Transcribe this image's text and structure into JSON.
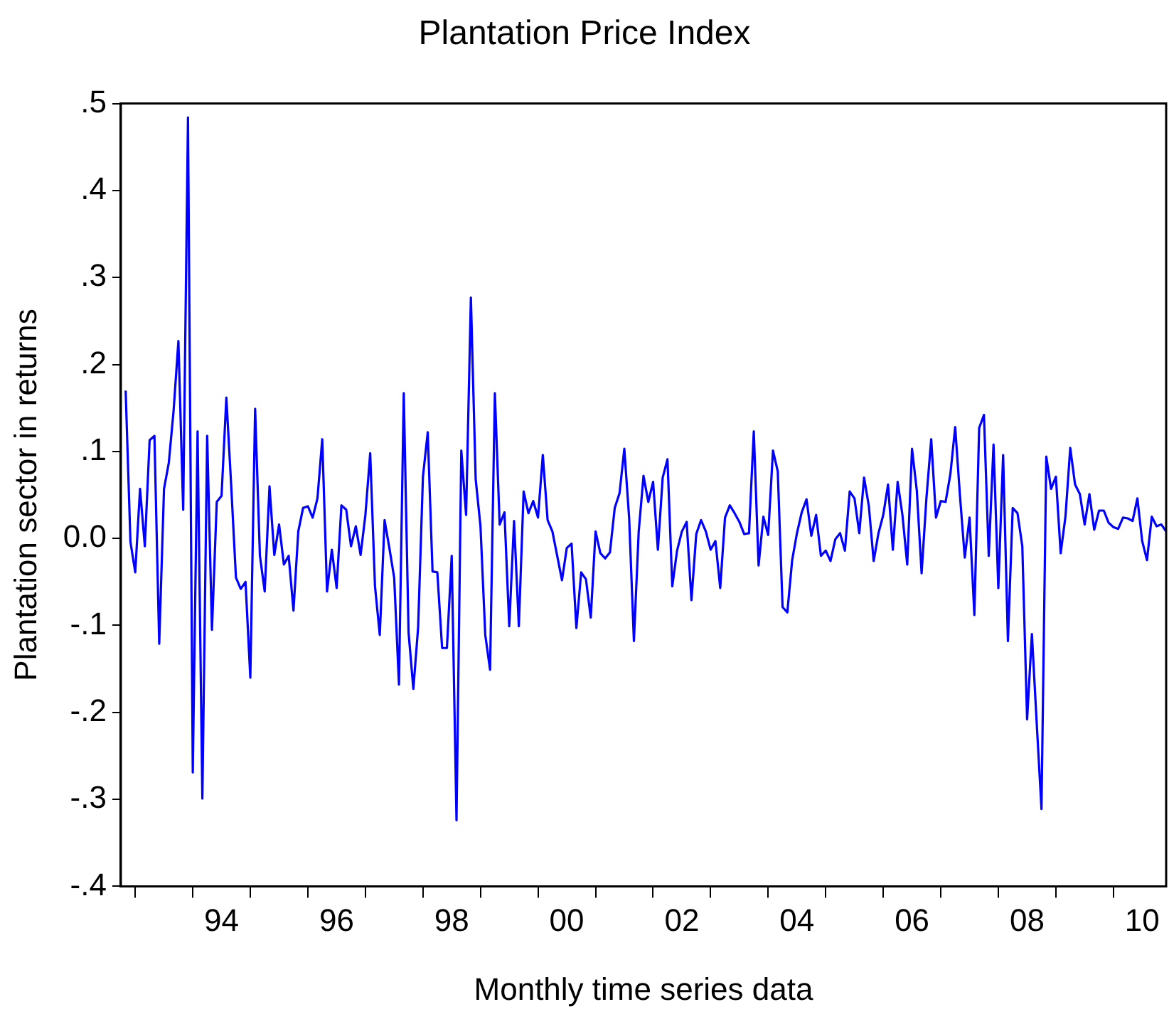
{
  "chart_data": {
    "type": "line",
    "title": "Plantation Price Index",
    "xlabel": "Monthly time series data",
    "ylabel": "Plantation sector in returns",
    "x": [
      "1992-11",
      "1992-12",
      "1993-01",
      "1993-02",
      "1993-03",
      "1993-04",
      "1993-05",
      "1993-06",
      "1993-07",
      "1993-08",
      "1993-09",
      "1993-10",
      "1993-11",
      "1993-12",
      "1994-01",
      "1994-02",
      "1994-03",
      "1994-04",
      "1994-05",
      "1994-06",
      "1994-07",
      "1994-08",
      "1994-09",
      "1994-10",
      "1994-11",
      "1994-12",
      "1995-01",
      "1995-02",
      "1995-03",
      "1995-04",
      "1995-05",
      "1995-06",
      "1995-07",
      "1995-08",
      "1995-09",
      "1995-10",
      "1995-11",
      "1995-12",
      "1996-01",
      "1996-02",
      "1996-03",
      "1996-04",
      "1996-05",
      "1996-06",
      "1996-07",
      "1996-08",
      "1996-09",
      "1996-10",
      "1996-11",
      "1996-12",
      "1997-01",
      "1997-02",
      "1997-03",
      "1997-04",
      "1997-05",
      "1997-06",
      "1997-07",
      "1997-08",
      "1997-09",
      "1997-10",
      "1997-11",
      "1997-12",
      "1998-01",
      "1998-02",
      "1998-03",
      "1998-04",
      "1998-05",
      "1998-06",
      "1998-07",
      "1998-08",
      "1998-09",
      "1998-10",
      "1998-11",
      "1998-12",
      "1999-01",
      "1999-02",
      "1999-03",
      "1999-04",
      "1999-05",
      "1999-06",
      "1999-07",
      "1999-08",
      "1999-09",
      "1999-10",
      "1999-11",
      "1999-12",
      "2000-01",
      "2000-02",
      "2000-03",
      "2000-04",
      "2000-05",
      "2000-06",
      "2000-07",
      "2000-08",
      "2000-09",
      "2000-10",
      "2000-11",
      "2000-12",
      "2001-01",
      "2001-02",
      "2001-03",
      "2001-04",
      "2001-05",
      "2001-06",
      "2001-07",
      "2001-08",
      "2001-09",
      "2001-10",
      "2001-11",
      "2001-12",
      "2002-01",
      "2002-02",
      "2002-03",
      "2002-04",
      "2002-05",
      "2002-06",
      "2002-07",
      "2002-08",
      "2002-09",
      "2002-10",
      "2002-11",
      "2002-12",
      "2003-01",
      "2003-02",
      "2003-03",
      "2003-04",
      "2003-05",
      "2003-06",
      "2003-07",
      "2003-08",
      "2003-09",
      "2003-10",
      "2003-11",
      "2003-12",
      "2004-01",
      "2004-02",
      "2004-03",
      "2004-04",
      "2004-05",
      "2004-06",
      "2004-07",
      "2004-08",
      "2004-09",
      "2004-10",
      "2004-11",
      "2004-12",
      "2005-01",
      "2005-02",
      "2005-03",
      "2005-04",
      "2005-05",
      "2005-06",
      "2005-07",
      "2005-08",
      "2005-09",
      "2005-10",
      "2005-11",
      "2005-12",
      "2006-01",
      "2006-02",
      "2006-03",
      "2006-04",
      "2006-05",
      "2006-06",
      "2006-07",
      "2006-08",
      "2006-09",
      "2006-10",
      "2006-11",
      "2006-12",
      "2007-01",
      "2007-02",
      "2007-03",
      "2007-04",
      "2007-05",
      "2007-06",
      "2007-07",
      "2007-08",
      "2007-09",
      "2007-10",
      "2007-11",
      "2007-12",
      "2008-01",
      "2008-02",
      "2008-03",
      "2008-04",
      "2008-05",
      "2008-06",
      "2008-07",
      "2008-08",
      "2008-09",
      "2008-10",
      "2008-11",
      "2008-12",
      "2009-01",
      "2009-02",
      "2009-03",
      "2009-04",
      "2009-05",
      "2009-06",
      "2009-07",
      "2009-08",
      "2009-09",
      "2009-10",
      "2009-11",
      "2009-12",
      "2010-01",
      "2010-02",
      "2010-03",
      "2010-04",
      "2010-05",
      "2010-06",
      "2010-07",
      "2010-08",
      "2010-09",
      "2010-10",
      "2010-11",
      "2010-12"
    ],
    "series": [
      {
        "color": "#0000ff",
        "values": [
          0.17,
          -0.004,
          -0.039,
          0.057,
          -0.009,
          0.113,
          0.118,
          -0.121,
          0.057,
          0.087,
          0.147,
          0.227,
          0.033,
          0.484,
          -0.269,
          0.123,
          -0.299,
          0.118,
          -0.105,
          0.042,
          0.049,
          0.162,
          0.062,
          -0.045,
          -0.058,
          -0.05,
          -0.16,
          0.149,
          -0.02,
          -0.061,
          0.06,
          -0.019,
          0.016,
          -0.03,
          -0.02,
          -0.083,
          0.008,
          0.035,
          0.037,
          0.024,
          0.046,
          0.114,
          -0.061,
          -0.013,
          -0.057,
          0.038,
          0.033,
          -0.009,
          0.014,
          -0.019,
          0.027,
          0.098,
          -0.055,
          -0.111,
          0.021,
          -0.011,
          -0.045,
          -0.168,
          0.167,
          -0.108,
          -0.173,
          -0.102,
          0.071,
          0.122,
          -0.038,
          -0.039,
          -0.126,
          -0.126,
          -0.02,
          -0.324,
          0.101,
          0.027,
          0.277,
          0.068,
          0.014,
          -0.111,
          -0.151,
          0.167,
          0.016,
          0.03,
          -0.101,
          0.02,
          -0.101,
          0.054,
          0.029,
          0.043,
          0.024,
          0.096,
          0.021,
          0.008,
          -0.02,
          -0.048,
          -0.011,
          -0.006,
          -0.103,
          -0.039,
          -0.047,
          -0.091,
          0.008,
          -0.017,
          -0.023,
          -0.016,
          0.035,
          0.052,
          0.103,
          0.024,
          -0.118,
          0.008,
          0.072,
          0.042,
          0.065,
          -0.013,
          0.07,
          0.091,
          -0.055,
          -0.014,
          0.008,
          0.019,
          -0.071,
          0.005,
          0.021,
          0.008,
          -0.013,
          -0.003,
          -0.057,
          0.024,
          0.038,
          0.029,
          0.019,
          0.005,
          0.006,
          0.123,
          -0.031,
          0.025,
          0.004,
          0.101,
          0.077,
          -0.079,
          -0.085,
          -0.025,
          0.006,
          0.03,
          0.045,
          0.003,
          0.027,
          -0.02,
          -0.014,
          -0.026,
          -0.001,
          0.006,
          -0.014,
          0.054,
          0.046,
          0.006,
          0.07,
          0.037,
          -0.026,
          0.006,
          0.027,
          0.062,
          -0.013,
          0.065,
          0.027,
          -0.03,
          0.103,
          0.055,
          -0.04,
          0.046,
          0.114,
          0.024,
          0.043,
          0.042,
          0.074,
          0.128,
          0.049,
          -0.022,
          0.024,
          -0.088,
          0.127,
          0.142,
          -0.02,
          0.108,
          -0.057,
          0.096,
          -0.118,
          0.035,
          0.029,
          -0.009,
          -0.208,
          -0.11,
          -0.212,
          -0.311,
          0.094,
          0.057,
          0.071,
          -0.017,
          0.025,
          0.104,
          0.062,
          0.051,
          0.016,
          0.051,
          0.01,
          0.032,
          0.032,
          0.018,
          0.013,
          0.011,
          0.024,
          0.023,
          0.02,
          0.046,
          -0.003,
          -0.025,
          0.025,
          0.014,
          0.016,
          0.008
        ]
      }
    ],
    "xlim": [
      "1992-10",
      "2010-12"
    ],
    "xticks": [
      {
        "value": "1993-01",
        "label": null
      },
      {
        "value": "1994-01",
        "label": null
      },
      {
        "value": "1994-07",
        "label": "94"
      },
      {
        "value": "1995-01",
        "label": null
      },
      {
        "value": "1996-01",
        "label": null
      },
      {
        "value": "1996-07",
        "label": "96"
      },
      {
        "value": "1997-01",
        "label": null
      },
      {
        "value": "1998-01",
        "label": null
      },
      {
        "value": "1998-07",
        "label": "98"
      },
      {
        "value": "1999-01",
        "label": null
      },
      {
        "value": "2000-01",
        "label": null
      },
      {
        "value": "2000-07",
        "label": "00"
      },
      {
        "value": "2001-01",
        "label": null
      },
      {
        "value": "2002-01",
        "label": null
      },
      {
        "value": "2002-07",
        "label": "02"
      },
      {
        "value": "2003-01",
        "label": null
      },
      {
        "value": "2004-01",
        "label": null
      },
      {
        "value": "2004-07",
        "label": "04"
      },
      {
        "value": "2005-01",
        "label": null
      },
      {
        "value": "2006-01",
        "label": null
      },
      {
        "value": "2006-07",
        "label": "06"
      },
      {
        "value": "2007-01",
        "label": null
      },
      {
        "value": "2008-01",
        "label": null
      },
      {
        "value": "2008-07",
        "label": "08"
      },
      {
        "value": "2009-01",
        "label": null
      },
      {
        "value": "2010-01",
        "label": null
      },
      {
        "value": "2010-07",
        "label": "10"
      }
    ],
    "ylim": [
      -0.4,
      0.5
    ],
    "yticks": [
      {
        "value": -0.4,
        "label": "-.4"
      },
      {
        "value": -0.3,
        "label": "-.3"
      },
      {
        "value": -0.2,
        "label": "-.2"
      },
      {
        "value": -0.1,
        "label": "-.1"
      },
      {
        "value": 0,
        "label": "0.0"
      },
      {
        "value": 0.1,
        "label": ".1"
      },
      {
        "value": 0.2,
        "label": ".2"
      },
      {
        "value": 0.3,
        "label": ".3"
      },
      {
        "value": 0.4,
        "label": ".4"
      },
      {
        "value": 0.5,
        "label": ".5"
      }
    ],
    "grid": false,
    "legend": false,
    "marker": "none",
    "line_style": "solid"
  }
}
